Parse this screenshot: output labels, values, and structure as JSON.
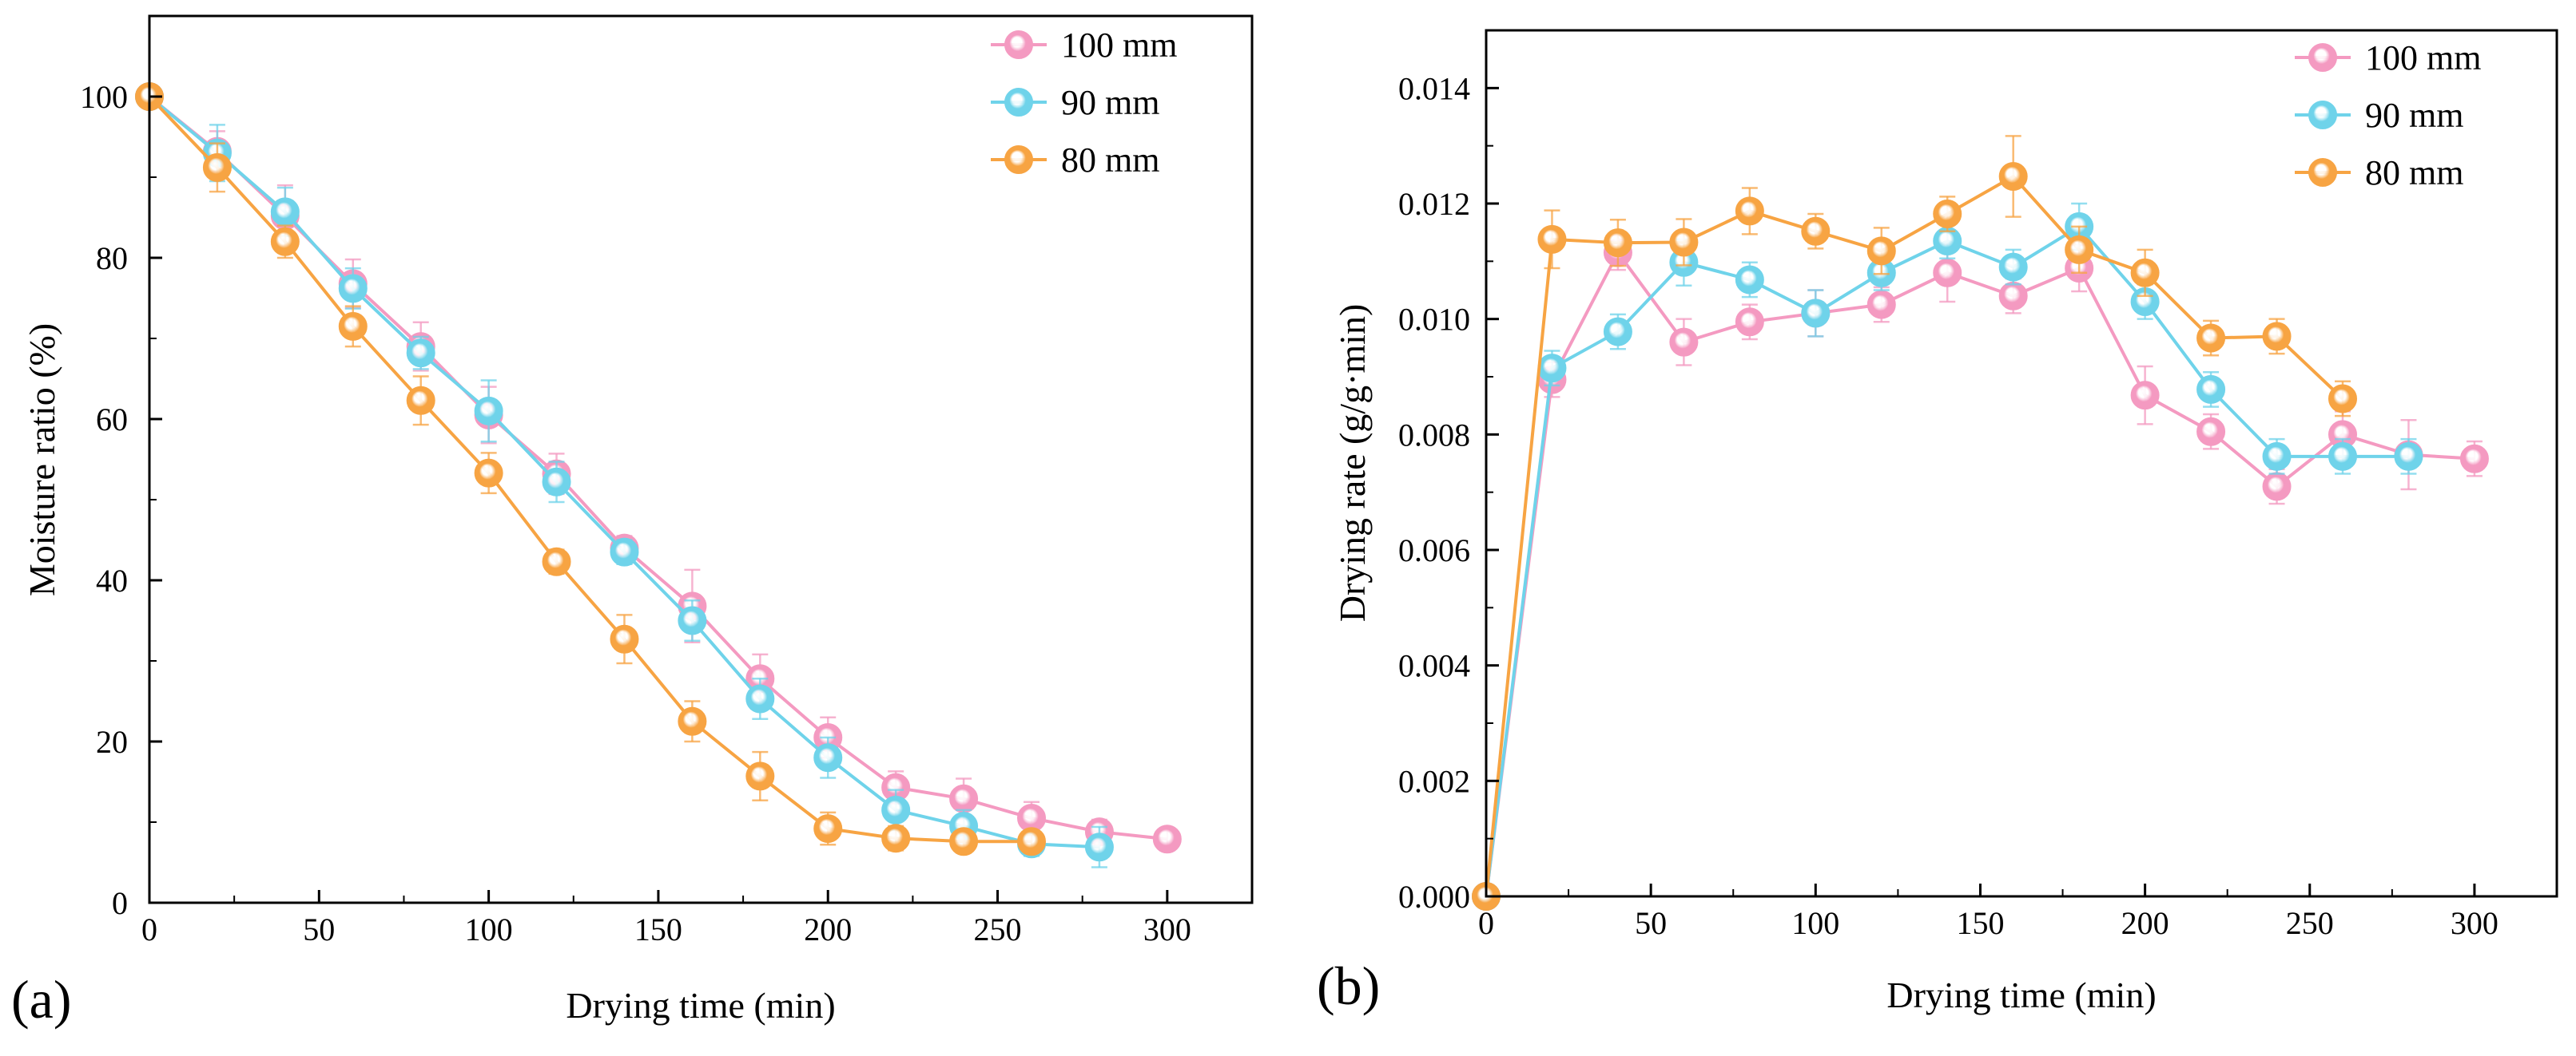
{
  "chart_data": [
    {
      "panel_label": "(a)",
      "type": "line",
      "xlabel": "Drying time (min)",
      "ylabel": "Moisture ratio (%)",
      "xlim": [
        0,
        325
      ],
      "ylim": [
        0,
        110
      ],
      "xticks": [
        0,
        50,
        100,
        150,
        200,
        250,
        300
      ],
      "yticks": [
        0,
        20,
        40,
        60,
        80,
        100
      ],
      "xtick_labels": [
        "0",
        "50",
        "100",
        "150",
        "200",
        "250",
        "300"
      ],
      "ytick_labels": [
        "0",
        "20",
        "40",
        "60",
        "80",
        "100"
      ],
      "legend_position": "top-right",
      "series": [
        {
          "name": "100 mm",
          "color": "#f49ac1",
          "x": [
            0,
            20,
            40,
            60,
            80,
            100,
            120,
            140,
            160,
            180,
            200,
            220,
            240,
            260,
            280,
            300
          ],
          "y": [
            100,
            93.2,
            85.2,
            76.8,
            69.0,
            60.5,
            53.2,
            44.0,
            36.8,
            27.8,
            20.5,
            14.3,
            12.9,
            10.5,
            8.8,
            7.9
          ],
          "err": [
            0,
            2.5,
            3.8,
            3.0,
            3.0,
            3.5,
            2.5,
            1.5,
            4.5,
            3.0,
            2.5,
            2.0,
            2.5,
            2.0,
            1.5,
            1.0
          ]
        },
        {
          "name": "90 mm",
          "color": "#6fd3ea",
          "x": [
            0,
            20,
            40,
            60,
            80,
            100,
            120,
            140,
            160,
            180,
            200,
            220,
            240,
            260,
            280
          ],
          "y": [
            100,
            93.0,
            85.7,
            76.2,
            68.2,
            61.0,
            52.2,
            43.5,
            35.0,
            25.3,
            18.0,
            11.5,
            9.5,
            7.3,
            6.9
          ],
          "err": [
            0,
            3.5,
            3.0,
            2.5,
            2.0,
            3.8,
            2.5,
            1.5,
            2.5,
            2.5,
            2.5,
            2.5,
            2.0,
            1.5,
            2.5
          ]
        },
        {
          "name": "80 mm",
          "color": "#f7a443",
          "x": [
            0,
            20,
            40,
            60,
            80,
            100,
            120,
            140,
            160,
            180,
            200,
            220,
            240,
            260
          ],
          "y": [
            100,
            91.2,
            82.0,
            71.5,
            62.3,
            53.3,
            42.3,
            32.7,
            22.5,
            15.7,
            9.2,
            8.0,
            7.6,
            7.6
          ],
          "err": [
            0,
            3.0,
            2.0,
            2.5,
            3.0,
            2.5,
            1.5,
            3.0,
            2.5,
            3.0,
            2.0,
            1.5,
            1.0,
            0.8
          ]
        }
      ]
    },
    {
      "panel_label": "(b)",
      "type": "line",
      "xlabel": "Drying time (min)",
      "ylabel": "Drying rate (g/g·min)",
      "xlim": [
        0,
        325
      ],
      "ylim": [
        0,
        0.015
      ],
      "xticks": [
        0,
        50,
        100,
        150,
        200,
        250,
        300
      ],
      "yticks": [
        0,
        0.002,
        0.004,
        0.006,
        0.008,
        0.01,
        0.012,
        0.014
      ],
      "xtick_labels": [
        "0",
        "50",
        "100",
        "150",
        "200",
        "250",
        "300"
      ],
      "ytick_labels": [
        "0.000",
        "0.002",
        "0.004",
        "0.006",
        "0.008",
        "0.010",
        "0.012",
        "0.014"
      ],
      "legend_position": "top-right",
      "series": [
        {
          "name": "100 mm",
          "color": "#f49ac1",
          "x": [
            0,
            20,
            40,
            60,
            80,
            100,
            120,
            140,
            160,
            180,
            200,
            220,
            240,
            260,
            280,
            300
          ],
          "y": [
            0,
            0.00895,
            0.01115,
            0.0096,
            0.00995,
            0.0101,
            0.01025,
            0.0108,
            0.0104,
            0.01088,
            0.00868,
            0.00805,
            0.0071,
            0.008,
            0.00765,
            0.00758
          ],
          "err": [
            0,
            0.0003,
            0.0003,
            0.0004,
            0.0003,
            0.0004,
            0.0003,
            0.0005,
            0.0003,
            0.0004,
            0.0005,
            0.0003,
            0.0003,
            0.0004,
            0.0006,
            0.0003
          ]
        },
        {
          "name": "90 mm",
          "color": "#6fd3ea",
          "x": [
            0,
            20,
            40,
            60,
            80,
            100,
            120,
            140,
            160,
            180,
            200,
            220,
            240,
            260,
            280
          ],
          "y": [
            0,
            0.00915,
            0.00978,
            0.01098,
            0.01068,
            0.0101,
            0.0108,
            0.01135,
            0.0109,
            0.0116,
            0.0103,
            0.00878,
            0.00762,
            0.00762,
            0.00762
          ],
          "err": [
            0,
            0.0003,
            0.0003,
            0.0004,
            0.0003,
            0.0004,
            0.0003,
            0.0003,
            0.0003,
            0.0004,
            0.0003,
            0.0003,
            0.0003,
            0.0003,
            0.0003
          ]
        },
        {
          "name": "80 mm",
          "color": "#f7a443",
          "x": [
            0,
            20,
            40,
            60,
            80,
            100,
            120,
            140,
            160,
            180,
            200,
            220,
            240,
            260
          ],
          "y": [
            0,
            0.01138,
            0.01132,
            0.01133,
            0.01187,
            0.01152,
            0.01118,
            0.01182,
            0.01247,
            0.0112,
            0.0108,
            0.00967,
            0.0097,
            0.00862
          ],
          "err": [
            0,
            0.0005,
            0.0004,
            0.0004,
            0.0004,
            0.0003,
            0.0004,
            0.0003,
            0.0007,
            0.0004,
            0.0004,
            0.0003,
            0.0003,
            0.0003
          ]
        }
      ]
    }
  ]
}
